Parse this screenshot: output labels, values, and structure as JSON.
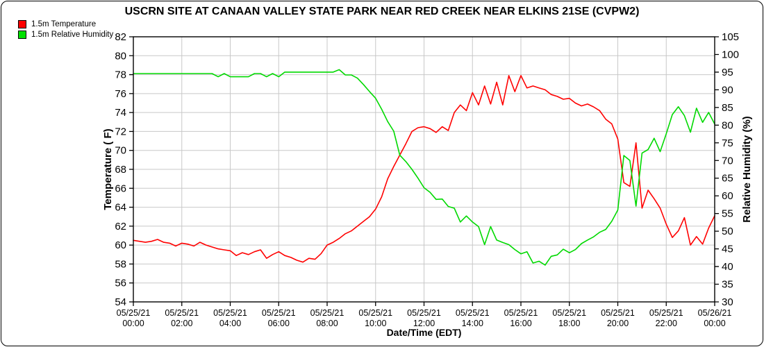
{
  "title": "USCRN SITE AT CANAAN VALLEY STATE PARK NEAR RED CREEK NEAR ELKINS 21SE (CVPW2)",
  "legend": [
    {
      "label": "1.5m Temperature",
      "color": "#ff0000"
    },
    {
      "label": "1.5m Relative Humidity",
      "color": "#00e100"
    }
  ],
  "colors": {
    "temperature_line": "#ff0000",
    "humidity_line": "#00d900",
    "grid": "#c8c8c8",
    "axis": "#000000",
    "background": "#ffffff"
  },
  "chart_data": {
    "type": "line",
    "title": "USCRN SITE AT CANAAN VALLEY STATE PARK NEAR RED CREEK NEAR ELKINS 21SE (CVPW2)",
    "grid": true,
    "x_axis": {
      "label": "Date/Time (EDT)",
      "start_hour": 0,
      "end_hour": 24,
      "tick_interval_hours": 2,
      "tick_labels": [
        [
          "05/25/21",
          "00:00"
        ],
        [
          "05/25/21",
          "02:00"
        ],
        [
          "05/25/21",
          "04:00"
        ],
        [
          "05/25/21",
          "06:00"
        ],
        [
          "05/25/21",
          "08:00"
        ],
        [
          "05/25/21",
          "10:00"
        ],
        [
          "05/25/21",
          "12:00"
        ],
        [
          "05/25/21",
          "14:00"
        ],
        [
          "05/25/21",
          "16:00"
        ],
        [
          "05/25/21",
          "18:00"
        ],
        [
          "05/25/21",
          "20:00"
        ],
        [
          "05/25/21",
          "22:00"
        ],
        [
          "05/26/21",
          "00:00"
        ]
      ]
    },
    "y_left": {
      "label": "Temperature ( F)",
      "min": 54,
      "max": 82,
      "tick_step": 2,
      "tick_labels": [
        "82",
        "80",
        "78",
        "76",
        "74",
        "72",
        "70",
        "68",
        "66",
        "64",
        "62",
        "60",
        "58",
        "56",
        "54"
      ]
    },
    "y_right": {
      "label": "Relative Humidity (%)",
      "min": 30,
      "max": 105,
      "tick_step": 5,
      "tick_labels": [
        "105",
        "100",
        "95",
        "90",
        "85",
        "80",
        "75",
        "70",
        "65",
        "60",
        "55",
        "50",
        "45",
        "40",
        "35",
        "30"
      ]
    },
    "interval_minutes": 15,
    "series": [
      {
        "name": "1.5m Temperature",
        "axis": "left",
        "color": "#ff0000",
        "values": [
          60.5,
          60.4,
          60.3,
          60.4,
          60.6,
          60.3,
          60.2,
          59.9,
          60.2,
          60.1,
          59.9,
          60.3,
          60.0,
          59.8,
          59.6,
          59.5,
          59.4,
          58.9,
          59.2,
          59.0,
          59.3,
          59.5,
          58.6,
          59.0,
          59.3,
          58.9,
          58.7,
          58.4,
          58.2,
          58.6,
          58.5,
          59.1,
          60.0,
          60.3,
          60.7,
          61.2,
          61.5,
          62.0,
          62.5,
          63.0,
          63.8,
          65.1,
          67.0,
          68.3,
          69.5,
          70.7,
          72.0,
          72.4,
          72.5,
          72.3,
          71.9,
          72.5,
          72.1,
          74.0,
          74.8,
          74.2,
          76.1,
          74.8,
          76.8,
          74.9,
          77.2,
          74.8,
          77.9,
          76.2,
          77.9,
          76.6,
          76.8,
          76.6,
          76.4,
          75.9,
          75.7,
          75.4,
          75.5,
          75.0,
          74.7,
          74.9,
          74.6,
          74.2,
          73.3,
          72.8,
          71.2,
          66.6,
          66.2,
          70.8,
          63.9,
          65.8,
          64.9,
          63.9,
          62.2,
          60.8,
          61.5,
          62.9,
          60.0,
          60.9,
          60.1,
          61.8,
          63.1
        ]
      },
      {
        "name": "1.5m Relative Humidity",
        "axis": "right",
        "color": "#00d900",
        "values": [
          94.6,
          94.6,
          94.6,
          94.6,
          94.6,
          94.6,
          94.6,
          94.6,
          94.6,
          94.6,
          94.6,
          94.6,
          94.6,
          94.6,
          93.7,
          94.6,
          93.7,
          93.7,
          93.7,
          93.7,
          94.6,
          94.6,
          93.7,
          94.6,
          93.7,
          95.0,
          95.0,
          95.0,
          95.0,
          95.0,
          95.0,
          95.0,
          95.0,
          95.0,
          95.7,
          94.2,
          94.2,
          93.3,
          91.5,
          89.5,
          87.6,
          84.5,
          81.0,
          78.3,
          71.5,
          69.7,
          67.5,
          65.0,
          62.3,
          61.0,
          59.0,
          59.1,
          57.0,
          56.5,
          52.6,
          54.3,
          52.6,
          51.3,
          46.2,
          51.3,
          47.5,
          46.8,
          46.2,
          44.8,
          43.6,
          44.2,
          41.0,
          41.5,
          40.4,
          42.9,
          43.3,
          44.9,
          43.9,
          44.8,
          46.5,
          47.5,
          48.4,
          49.7,
          50.5,
          52.8,
          56.0,
          71.4,
          70.0,
          57.1,
          72.1,
          73.1,
          76.3,
          72.5,
          77.6,
          83.0,
          85.2,
          82.7,
          78.0,
          84.8,
          80.8,
          83.6,
          80.3
        ]
      }
    ]
  }
}
